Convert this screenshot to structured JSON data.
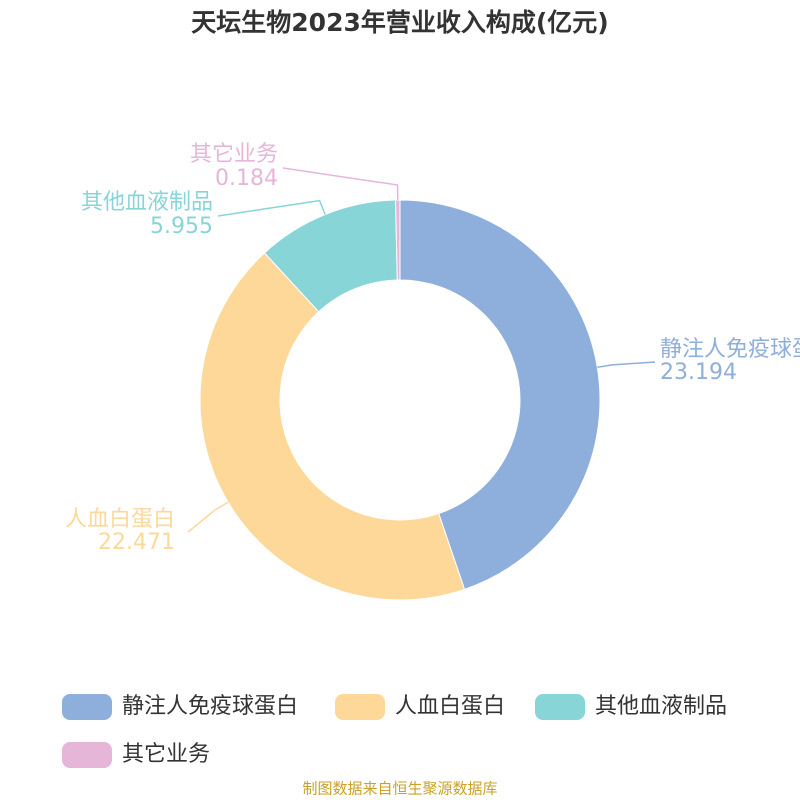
{
  "chart_data": {
    "type": "donut",
    "title": "天坛生物2023年营业收入构成(亿元)",
    "categories": [
      "静注人免疫球蛋白",
      "人血白蛋白",
      "其他血液制品",
      "其它业务"
    ],
    "values": [
      23.194,
      22.471,
      5.955,
      0.184
    ],
    "colors": [
      "#8eaedb",
      "#fed899",
      "#88d5d8",
      "#e6b6d9"
    ],
    "source": "制图数据来自恒生聚源数据库"
  }
}
